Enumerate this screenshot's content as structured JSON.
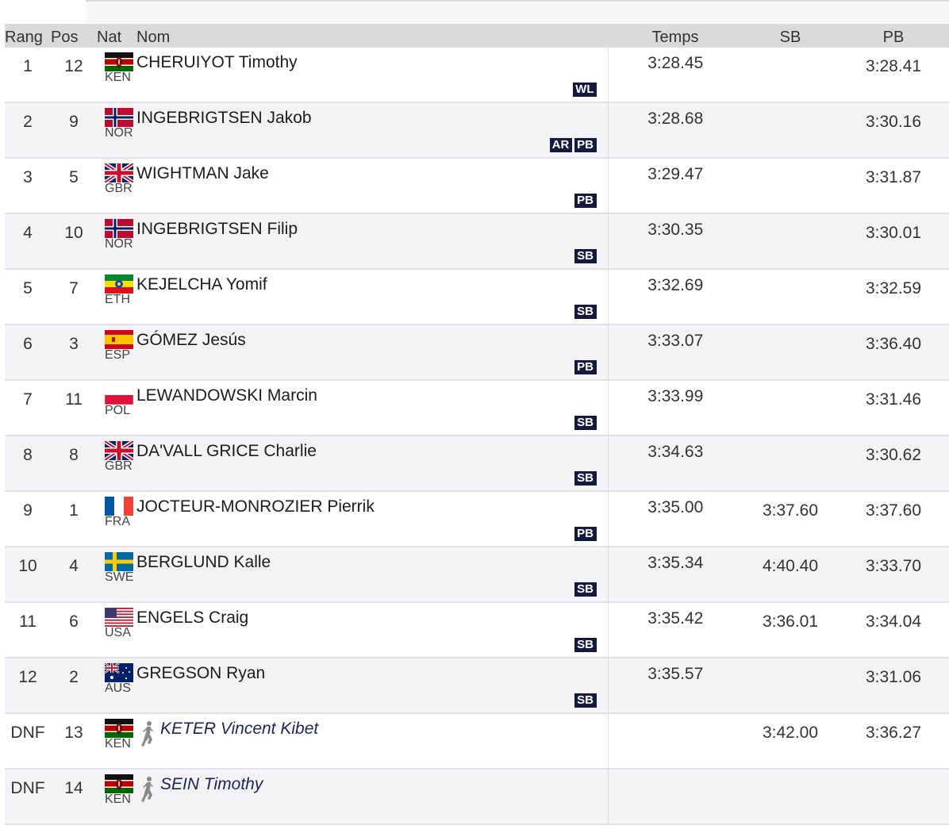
{
  "columns": {
    "rank": "Rang",
    "pos": "Pos",
    "nat": "Nat",
    "name": "Nom",
    "time": "Temps",
    "sb": "SB",
    "pb": "PB"
  },
  "results": [
    {
      "rank": "1",
      "pos": "12",
      "flag": "kenya-flag-icon",
      "nat": "KEN",
      "name": "CHERUIYOT Timothy",
      "badges": [
        "WL"
      ],
      "time": "3:28.45",
      "sb": "",
      "pb": "3:28.41",
      "dnf": false
    },
    {
      "rank": "2",
      "pos": "9",
      "flag": "norway-flag-icon",
      "nat": "NOR",
      "name": "INGEBRIGTSEN Jakob",
      "badges": [
        "AR",
        "PB"
      ],
      "time": "3:28.68",
      "sb": "",
      "pb": "3:30.16",
      "dnf": false
    },
    {
      "rank": "3",
      "pos": "5",
      "flag": "uk-flag-icon",
      "nat": "GBR",
      "name": "WIGHTMAN Jake",
      "badges": [
        "PB"
      ],
      "time": "3:29.47",
      "sb": "",
      "pb": "3:31.87",
      "dnf": false
    },
    {
      "rank": "4",
      "pos": "10",
      "flag": "norway-flag-icon",
      "nat": "NOR",
      "name": "INGEBRIGTSEN Filip",
      "badges": [
        "SB"
      ],
      "time": "3:30.35",
      "sb": "",
      "pb": "3:30.01",
      "dnf": false
    },
    {
      "rank": "5",
      "pos": "7",
      "flag": "ethiopia-flag-icon",
      "nat": "ETH",
      "name": "KEJELCHA Yomif",
      "badges": [
        "SB"
      ],
      "time": "3:32.69",
      "sb": "",
      "pb": "3:32.59",
      "dnf": false
    },
    {
      "rank": "6",
      "pos": "3",
      "flag": "spain-flag-icon",
      "nat": "ESP",
      "name": "GÓMEZ Jesús",
      "badges": [
        "PB"
      ],
      "time": "3:33.07",
      "sb": "",
      "pb": "3:36.40",
      "dnf": false
    },
    {
      "rank": "7",
      "pos": "11",
      "flag": "poland-flag-icon",
      "nat": "POL",
      "name": "LEWANDOWSKI Marcin",
      "badges": [
        "SB"
      ],
      "time": "3:33.99",
      "sb": "",
      "pb": "3:31.46",
      "dnf": false
    },
    {
      "rank": "8",
      "pos": "8",
      "flag": "uk-flag-icon",
      "nat": "GBR",
      "name": "DA'VALL GRICE Charlie",
      "badges": [
        "SB"
      ],
      "time": "3:34.63",
      "sb": "",
      "pb": "3:30.62",
      "dnf": false
    },
    {
      "rank": "9",
      "pos": "1",
      "flag": "france-flag-icon",
      "nat": "FRA",
      "name": "JOCTEUR-MONROZIER Pierrik",
      "badges": [
        "PB"
      ],
      "time": "3:35.00",
      "sb": "3:37.60",
      "pb": "3:37.60",
      "dnf": false
    },
    {
      "rank": "10",
      "pos": "4",
      "flag": "sweden-flag-icon",
      "nat": "SWE",
      "name": "BERGLUND Kalle",
      "badges": [
        "SB"
      ],
      "time": "3:35.34",
      "sb": "4:40.40",
      "pb": "3:33.70",
      "dnf": false
    },
    {
      "rank": "11",
      "pos": "6",
      "flag": "usa-flag-icon",
      "nat": "USA",
      "name": "ENGELS Craig",
      "badges": [
        "SB"
      ],
      "time": "3:35.42",
      "sb": "3:36.01",
      "pb": "3:34.04",
      "dnf": false
    },
    {
      "rank": "12",
      "pos": "2",
      "flag": "australia-flag-icon",
      "nat": "AUS",
      "name": "GREGSON Ryan",
      "badges": [
        "SB"
      ],
      "time": "3:35.57",
      "sb": "",
      "pb": "3:31.06",
      "dnf": false
    },
    {
      "rank": "DNF",
      "pos": "13",
      "flag": "kenya-flag-icon",
      "nat": "KEN",
      "name": "KETER Vincent Kibet",
      "badges": [],
      "time": "",
      "sb": "3:42.00",
      "pb": "3:36.27",
      "dnf": true,
      "icon": "pacemaker-runner-icon"
    },
    {
      "rank": "DNF",
      "pos": "14",
      "flag": "kenya-flag-icon",
      "nat": "KEN",
      "name": "SEIN Timothy",
      "badges": [],
      "time": "",
      "sb": "",
      "pb": "",
      "dnf": true,
      "icon": "pacemaker-runner-icon"
    }
  ]
}
